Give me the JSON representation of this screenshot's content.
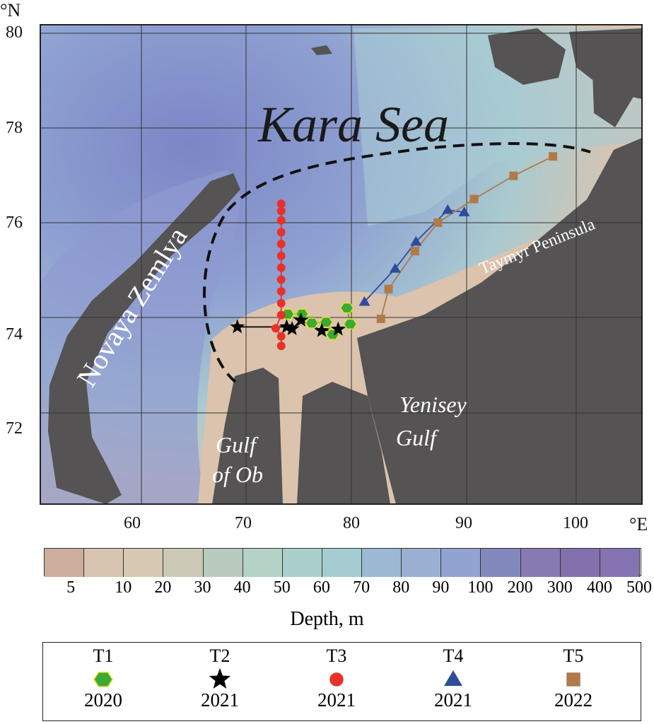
{
  "map": {
    "title": "Kara Sea",
    "labels": {
      "novaya_zemlya": "Novaya Zemlya",
      "taymyr": "Taymyr Peninsula",
      "gulf_ob_1": "Gulf",
      "gulf_ob_2": "of Ob",
      "yenisey_1": "Yenisey",
      "yenisey_2": "Gulf"
    },
    "lat_unit": "°N",
    "lon_unit": "°E",
    "lat_ticks": [
      "80",
      "78",
      "76",
      "74",
      "72"
    ],
    "lon_ticks": [
      "60",
      "70",
      "80",
      "90",
      "100"
    ],
    "stations": [
      {
        "id": "T1",
        "year": "2020",
        "marker": "hexagon",
        "color": "#3aaa35",
        "edge": "#e8e22a",
        "line": "#3aaa35",
        "points": [
          [
            74.0,
            74.07
          ],
          [
            75.3,
            74.07
          ],
          [
            76.2,
            73.88
          ],
          [
            77.5,
            73.9
          ],
          [
            78.1,
            73.64
          ],
          [
            79.7,
            73.86
          ],
          [
            79.4,
            74.2
          ]
        ]
      },
      {
        "id": "T2",
        "year": "2021",
        "marker": "star",
        "color": "#000000",
        "line": "#000000",
        "points": [
          [
            69.4,
            73.8
          ],
          [
            73.9,
            73.8
          ],
          [
            74.4,
            73.76
          ],
          [
            75.2,
            73.94
          ],
          [
            77.1,
            73.72
          ],
          [
            78.6,
            73.75
          ]
        ]
      },
      {
        "id": "T3",
        "year": "2021",
        "marker": "circle",
        "color": "#e8312a",
        "line": "#e8312a",
        "points": [
          [
            73.4,
            76.4
          ],
          [
            73.4,
            76.25
          ],
          [
            73.4,
            76.05
          ],
          [
            73.4,
            75.8
          ],
          [
            73.4,
            75.55
          ],
          [
            73.4,
            75.3
          ],
          [
            73.4,
            75.05
          ],
          [
            73.4,
            74.8
          ],
          [
            73.4,
            74.55
          ],
          [
            73.4,
            74.3
          ],
          [
            73.4,
            74.05
          ],
          [
            72.9,
            73.77
          ],
          [
            73.4,
            73.6
          ],
          [
            73.4,
            73.4
          ]
        ]
      },
      {
        "id": "T4",
        "year": "2021",
        "marker": "triangle",
        "color": "#2f4b9e",
        "line": "#2f4b9e",
        "points": [
          [
            81.0,
            74.33
          ],
          [
            83.8,
            75.03
          ],
          [
            85.7,
            75.6
          ],
          [
            88.6,
            76.27
          ],
          [
            90.1,
            76.22
          ]
        ]
      },
      {
        "id": "T5",
        "year": "2022",
        "marker": "square",
        "color": "#b07a4a",
        "line": "#b07a4a",
        "points": [
          [
            82.5,
            73.97
          ],
          [
            83.2,
            74.6
          ],
          [
            85.6,
            75.4
          ],
          [
            87.7,
            76.0
          ],
          [
            91.0,
            76.5
          ],
          [
            94.6,
            76.99
          ],
          [
            98.2,
            77.4
          ]
        ]
      }
    ]
  },
  "colorbar": {
    "title": "Depth, m",
    "labels": [
      "5",
      "10",
      "20",
      "30",
      "40",
      "50",
      "60",
      "70",
      "80",
      "90",
      "100",
      "200",
      "300",
      "400",
      "500"
    ],
    "colors": [
      "#cdae9c",
      "#d6c3b0",
      "#d6c8b3",
      "#cbc9b6",
      "#b8cbbe",
      "#b4d2c6",
      "#abd0cb",
      "#a5ccd0",
      "#9cb8d2",
      "#9cb0d4",
      "#93a3d0",
      "#8288bb",
      "#877ab3",
      "#8470ad",
      "#8674b2"
    ]
  }
}
